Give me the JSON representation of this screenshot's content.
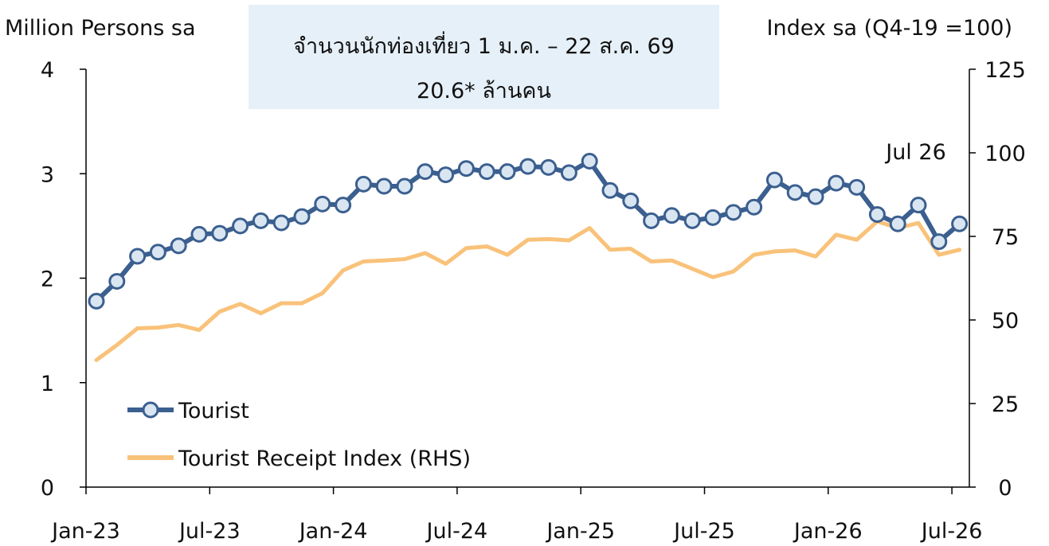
{
  "chart_data": {
    "type": "line",
    "left_axis_title": "Million Persons sa",
    "right_axis_title": "Index sa (Q4-19 =100)",
    "annotation_box": {
      "line1": "จำนวนนักท่องเที่ยว 1 ม.ค. – 22 ส.ค. 69",
      "line2": "20.6* ล้านคน",
      "background": "#e6f0f8"
    },
    "point_label": "Jul 26",
    "x": [
      "Jan-23",
      "Feb-23",
      "Mar-23",
      "Apr-23",
      "May-23",
      "Jun-23",
      "Jul-23",
      "Aug-23",
      "Sep-23",
      "Oct-23",
      "Nov-23",
      "Dec-23",
      "Jan-24",
      "Feb-24",
      "Mar-24",
      "Apr-24",
      "May-24",
      "Jun-24",
      "Jul-24",
      "Aug-24",
      "Sep-24",
      "Oct-24",
      "Nov-24",
      "Dec-24",
      "Jan-25",
      "Feb-25",
      "Mar-25",
      "Apr-25",
      "May-25",
      "Jun-25",
      "Jul-25",
      "Aug-25",
      "Sep-25",
      "Oct-25",
      "Nov-25",
      "Dec-25",
      "Jan-26",
      "Feb-26",
      "Mar-26",
      "Apr-26",
      "May-26",
      "Jun-26",
      "Jul-26"
    ],
    "x_tick_labels": [
      "Jan-23",
      "Jul-23",
      "Jan-24",
      "Jul-24",
      "Jan-25",
      "Jul-25",
      "Jan-26",
      "Jul-26"
    ],
    "y_left": {
      "range": [
        0,
        4
      ],
      "ticks": [
        "0",
        "1",
        "2",
        "3",
        "4"
      ]
    },
    "y_right": {
      "range": [
        0,
        125
      ],
      "ticks": [
        "0",
        "25",
        "50",
        "75",
        "100",
        "125"
      ]
    },
    "series": [
      {
        "name": "Tourist",
        "axis": "left",
        "color": "#3b5f8f",
        "marker_fill": "#d9e6f2",
        "values": [
          1.78,
          1.97,
          2.21,
          2.25,
          2.31,
          2.42,
          2.43,
          2.5,
          2.55,
          2.53,
          2.59,
          2.71,
          2.7,
          2.9,
          2.88,
          2.88,
          3.02,
          2.99,
          3.05,
          3.02,
          3.02,
          3.07,
          3.06,
          3.01,
          3.12,
          2.84,
          2.74,
          2.55,
          2.6,
          2.55,
          2.58,
          2.63,
          2.68,
          2.94,
          2.82,
          2.78,
          2.91,
          2.87,
          2.61,
          2.52,
          2.7,
          2.35,
          2.52
        ]
      },
      {
        "name": "Tourist Receipt Index (RHS)",
        "axis": "right",
        "color": "#f9c27a",
        "values": [
          38,
          42.5,
          47.5,
          47.7,
          48.5,
          47,
          52.5,
          54.8,
          52,
          55,
          55,
          58,
          64.8,
          67.5,
          67.8,
          68.2,
          70,
          66.8,
          71.5,
          72,
          69.5,
          74,
          74.2,
          73.8,
          77.5,
          71,
          71.3,
          67.5,
          67.8,
          65.3,
          62.8,
          64.5,
          69.5,
          70.5,
          70.8,
          69,
          75.5,
          74,
          79.5,
          77.5,
          79,
          69.5,
          71
        ]
      }
    ],
    "legend_position": "bottom-left",
    "grid": false
  }
}
